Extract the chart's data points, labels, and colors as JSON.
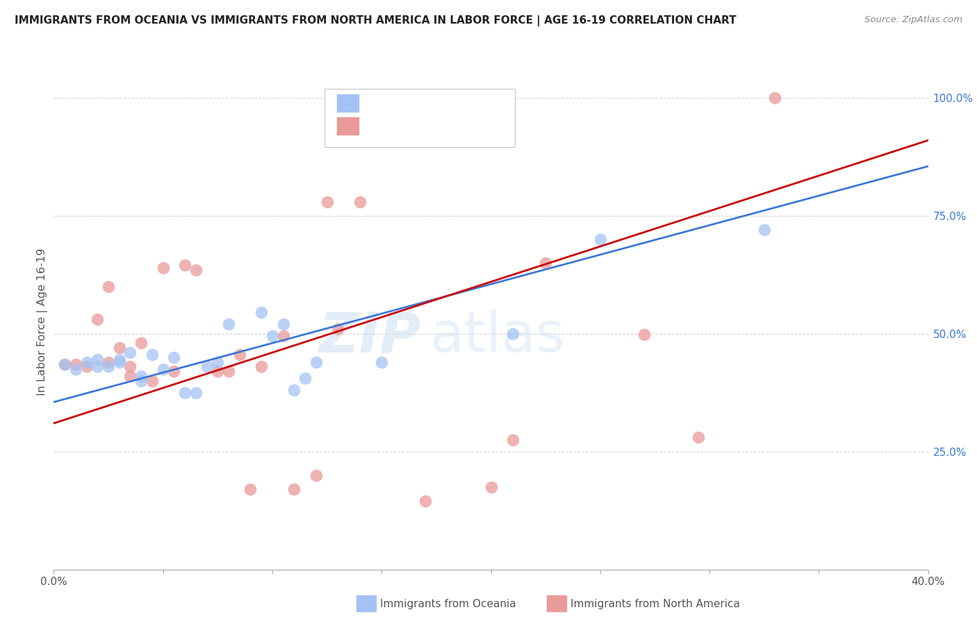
{
  "title": "IMMIGRANTS FROM OCEANIA VS IMMIGRANTS FROM NORTH AMERICA IN LABOR FORCE | AGE 16-19 CORRELATION CHART",
  "source": "Source: ZipAtlas.com",
  "xlabel_bottom": [
    "Immigrants from Oceania",
    "Immigrants from North America"
  ],
  "ylabel": "In Labor Force | Age 16-19",
  "xlim": [
    0.0,
    0.4
  ],
  "ylim": [
    0.0,
    1.05
  ],
  "xticks": [
    0.0,
    0.05,
    0.1,
    0.15,
    0.2,
    0.25,
    0.3,
    0.35,
    0.4
  ],
  "xticklabels": [
    "0.0%",
    "",
    "",
    "",
    "",
    "",
    "",
    "",
    "40.0%"
  ],
  "yticks_right": [
    0.0,
    0.25,
    0.5,
    0.75,
    1.0
  ],
  "yticklabels_right": [
    "",
    "25.0%",
    "50.0%",
    "75.0%",
    "100.0%"
  ],
  "blue_color": "#a4c2f4",
  "pink_color": "#ea9999",
  "line_blue": "#3c78d8",
  "line_pink": "#cc0000",
  "text_blue": "#3c78d8",
  "watermark_color": "#cfe2f3",
  "blue_scatter_x": [
    0.135,
    0.005,
    0.01,
    0.015,
    0.02,
    0.02,
    0.025,
    0.03,
    0.03,
    0.035,
    0.04,
    0.04,
    0.045,
    0.05,
    0.055,
    0.06,
    0.065,
    0.07,
    0.075,
    0.08,
    0.095,
    0.1,
    0.105,
    0.11,
    0.115,
    0.12,
    0.15,
    0.21,
    0.25,
    0.325
  ],
  "blue_scatter_y": [
    1.0,
    0.435,
    0.425,
    0.44,
    0.43,
    0.445,
    0.43,
    0.44,
    0.445,
    0.46,
    0.4,
    0.41,
    0.455,
    0.425,
    0.45,
    0.375,
    0.375,
    0.43,
    0.44,
    0.52,
    0.545,
    0.495,
    0.52,
    0.38,
    0.405,
    0.44,
    0.44,
    0.5,
    0.7,
    0.72
  ],
  "pink_scatter_x": [
    0.33,
    0.005,
    0.01,
    0.015,
    0.02,
    0.025,
    0.025,
    0.03,
    0.035,
    0.035,
    0.04,
    0.045,
    0.05,
    0.055,
    0.06,
    0.065,
    0.075,
    0.08,
    0.085,
    0.09,
    0.095,
    0.105,
    0.11,
    0.12,
    0.125,
    0.13,
    0.14,
    0.17,
    0.2,
    0.21,
    0.225,
    0.27,
    0.295
  ],
  "pink_scatter_y": [
    1.0,
    0.435,
    0.435,
    0.43,
    0.53,
    0.44,
    0.6,
    0.47,
    0.41,
    0.43,
    0.48,
    0.4,
    0.64,
    0.42,
    0.645,
    0.635,
    0.42,
    0.42,
    0.455,
    0.17,
    0.43,
    0.495,
    0.17,
    0.2,
    0.78,
    0.51,
    0.78,
    0.145,
    0.175,
    0.275,
    0.65,
    0.498,
    0.28
  ],
  "line_blue_x0": 0.0,
  "line_blue_y0": 0.355,
  "line_blue_x1": 0.4,
  "line_blue_y1": 0.855,
  "line_pink_x0": 0.0,
  "line_pink_y0": 0.31,
  "line_pink_x1": 0.4,
  "line_pink_y1": 0.91
}
